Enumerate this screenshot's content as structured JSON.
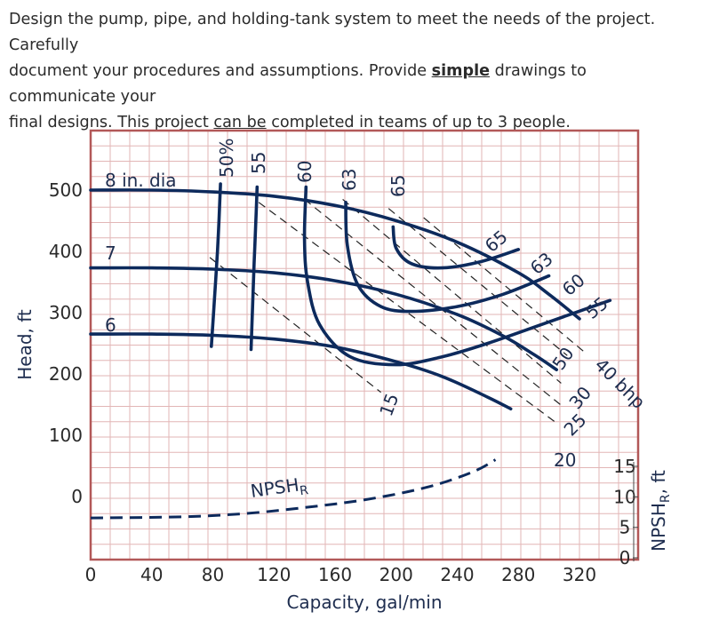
{
  "text": {
    "line1": "Design the pump, pipe, and holding-tank system to meet the needs of the project. Carefully",
    "line2_a": "document your procedures and assumptions. Provide ",
    "line2_b": "simple",
    "line2_c": " drawings to communicate your",
    "line3_a": "final designs. This project ",
    "line3_b": "can be",
    "line3_c": " completed in teams of up to 3 people."
  },
  "colors": {
    "curve": "#0d2a5c",
    "grid": "#e2b6b6",
    "frame": "#b25858",
    "text": "#2b2b2b"
  },
  "chart_data": {
    "type": "line",
    "xlabel": "Capacity, gal/min",
    "ylabel": "Head, ft",
    "y2label": "NPSH",
    "y2label_sub": "R",
    "y2label_unit": ", ft",
    "xlim": [
      0,
      360
    ],
    "ylim": [
      -100,
      600
    ],
    "x_ticks": [
      "0",
      "40",
      "80",
      "120",
      "160",
      "200",
      "240",
      "280",
      "320"
    ],
    "y_ticks": [
      "500",
      "400",
      "300",
      "200",
      "100",
      "0"
    ],
    "y2_ticks": [
      "15",
      "10",
      "5",
      "0"
    ],
    "head_curves": [
      {
        "label": "8 in. dia",
        "x": [
          0,
          40,
          80,
          120,
          160,
          200,
          240,
          280,
          300,
          320
        ],
        "y": [
          500,
          500,
          497,
          490,
          475,
          450,
          415,
          365,
          330,
          290
        ]
      },
      {
        "label": "7",
        "x": [
          0,
          40,
          80,
          120,
          160,
          200,
          240,
          270,
          290,
          305
        ],
        "y": [
          373,
          373,
          371,
          365,
          352,
          330,
          297,
          262,
          232,
          207
        ]
      },
      {
        "label": "6",
        "x": [
          0,
          40,
          80,
          120,
          160,
          200,
          230,
          260,
          275
        ],
        "y": [
          265,
          265,
          263,
          257,
          244,
          220,
          196,
          162,
          143
        ]
      }
    ],
    "efficiency_curves": [
      {
        "label": "50%",
        "x": [
          85,
          84,
          83,
          81,
          79
        ],
        "y": [
          510,
          450,
          400,
          320,
          245
        ]
      },
      {
        "label": "55",
        "x": [
          109,
          108,
          107,
          106,
          105
        ],
        "y": [
          505,
          440,
          380,
          310,
          240
        ]
      },
      {
        "label": "60",
        "x": [
          141,
          140,
          142,
          150,
          170,
          200,
          230,
          260,
          300,
          340
        ],
        "y": [
          505,
          420,
          350,
          280,
          228,
          215,
          228,
          250,
          285,
          320
        ]
      },
      {
        "label": "63",
        "x": [
          167,
          168,
          175,
          190,
          210,
          240,
          270,
          300
        ],
        "y": [
          480,
          410,
          345,
          310,
          302,
          310,
          330,
          360
        ]
      },
      {
        "label": "65",
        "x": [
          198,
          200,
          210,
          230,
          255,
          280
        ],
        "y": [
          440,
          405,
          380,
          373,
          383,
          403
        ]
      }
    ],
    "efficiency_end_labels": [
      "65",
      "63",
      "60",
      "55"
    ],
    "efficiency_end_x": [
      265,
      292,
      312,
      328
    ],
    "efficiency_end_y": [
      409,
      376,
      338,
      303
    ],
    "bhp_lines": [
      {
        "label": "15",
        "x": [
          78,
          190
        ],
        "y": [
          390,
          170
        ]
      },
      {
        "label": "20",
        "x": [
          110,
          305
        ],
        "y": [
          480,
          120
        ]
      },
      {
        "label": "25",
        "x": [
          140,
          310
        ],
        "y": [
          485,
          145
        ]
      },
      {
        "label": "30",
        "x": [
          165,
          308
        ],
        "y": [
          485,
          185
        ]
      },
      {
        "label": "40 bhp",
        "x": [
          195,
          312
        ],
        "y": [
          470,
          230
        ]
      },
      {
        "label": "50",
        "x": [
          218,
          325
        ],
        "y": [
          455,
          232
        ]
      }
    ],
    "npshr": {
      "label": "NPSH",
      "label_sub": "R",
      "x": [
        0,
        60,
        100,
        140,
        180,
        220,
        250,
        265
      ],
      "y": [
        -35,
        -33,
        -28,
        -18,
        -5,
        15,
        40,
        60
      ]
    }
  }
}
